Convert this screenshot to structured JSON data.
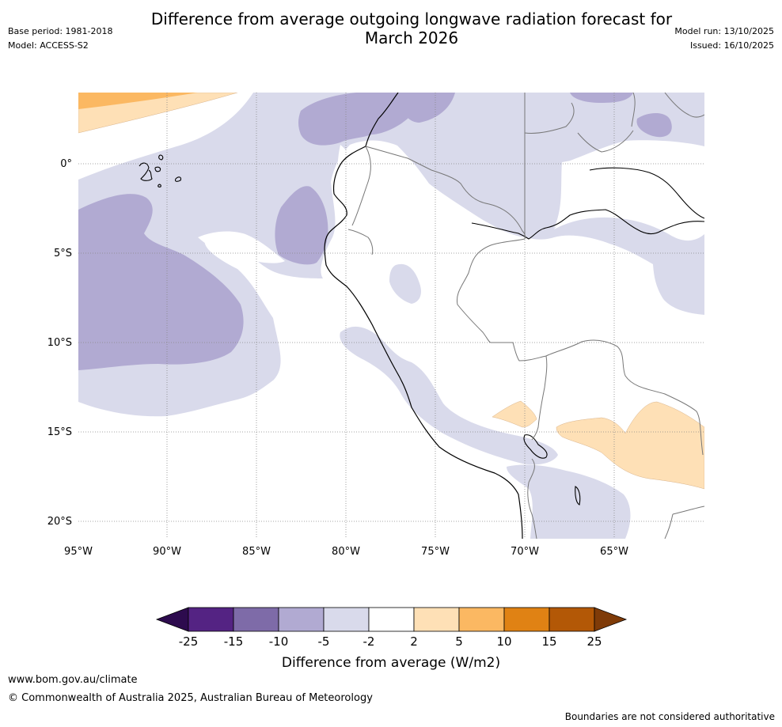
{
  "title": {
    "line1": "Difference from average outgoing longwave radiation forecast for",
    "line2": "March 2026"
  },
  "meta": {
    "base_period": "Base period: 1981-2018",
    "model": "Model: ACCESS-S2",
    "model_run": "Model run: 13/10/2025",
    "issued": "Issued: 16/10/2025"
  },
  "map": {
    "lon_range": [
      -95,
      -60
    ],
    "lat_range": [
      -21,
      4
    ],
    "lat_labels": [
      "0°",
      "5°S",
      "10°S",
      "15°S",
      "20°S"
    ],
    "lon_labels": [
      "95°W",
      "90°W",
      "85°W",
      "80°W",
      "75°W",
      "70°W",
      "65°W"
    ]
  },
  "colorbar": {
    "ticks": [
      "-25",
      "-15",
      "-10",
      "-5",
      "-2",
      "2",
      "5",
      "10",
      "15",
      "25"
    ],
    "label": "Difference from average (W/m2)",
    "colors": {
      "lt_neg25": "#2d0b4e",
      "neg25_neg15": "#542383",
      "neg15_neg10": "#7e6ba8",
      "neg10_neg5": "#b1aad2",
      "neg5_neg2": "#d9daeb",
      "neg2_2": "#ffffff",
      "2_5": "#fee0b6",
      "5_10": "#fbb862",
      "10_15": "#e08214",
      "15_25": "#b35806",
      "gt_25": "#7f3b08"
    }
  },
  "footer": {
    "url": "www.bom.gov.au/climate",
    "copyright": "© Commonwealth of Australia 2025, Australian Bureau of Meteorology",
    "note": "Boundaries are not considered authoritative"
  }
}
